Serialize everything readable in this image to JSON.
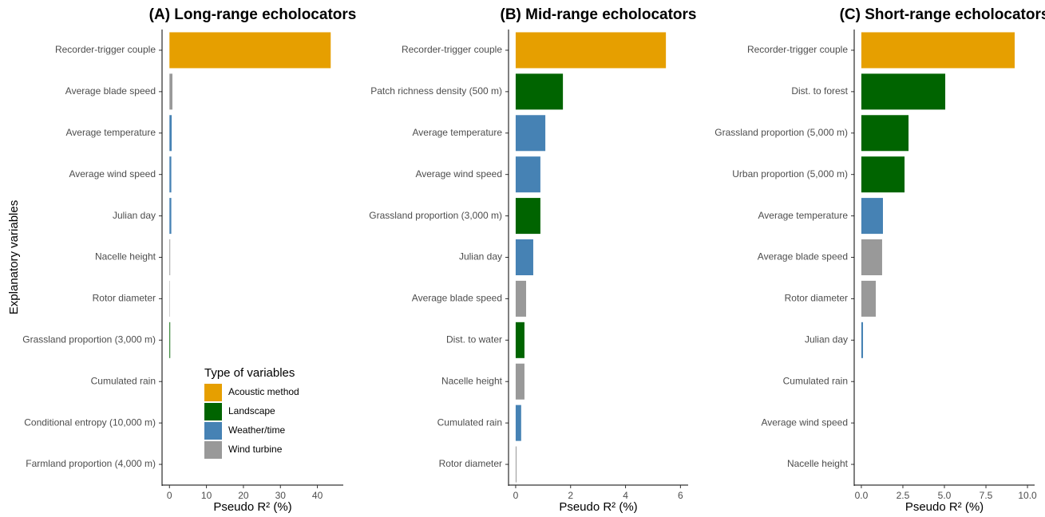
{
  "chart_data": [
    {
      "type": "bar",
      "orientation": "horizontal",
      "title": "(A) Long-range echolocators",
      "xlabel": "Pseudo R² (%)",
      "ylabel": "Explanatory variables",
      "categories": [
        "Recorder-trigger couple",
        "Average blade speed",
        "Average temperature",
        "Average wind speed",
        "Julian day",
        "Nacelle height",
        "Rotor diameter",
        "Grassland proportion (3,000 m)",
        "Cumulated rain",
        "Conditional entropy (10,000 m)",
        "Farmland proportion (4,000 m)"
      ],
      "values": [
        43.6,
        0.8,
        0.6,
        0.5,
        0.5,
        0.2,
        0.1,
        0.2,
        0,
        0,
        0
      ],
      "colors": [
        "#E69F00",
        "#999999",
        "#4682B4",
        "#4682B4",
        "#4682B4",
        "#999999",
        "#999999",
        "#006400",
        "#4682B4",
        "#006400",
        "#006400"
      ],
      "xlim": [
        -2,
        47
      ],
      "xticks": [
        0,
        10,
        20,
        30,
        40
      ],
      "legend": {
        "title": "Type of variables",
        "position": "bottom-right",
        "items": [
          {
            "name": "Acoustic method",
            "color": "#E69F00"
          },
          {
            "name": "Landscape",
            "color": "#006400"
          },
          {
            "name": "Weather/time",
            "color": "#4682B4"
          },
          {
            "name": "Wind turbine",
            "color": "#999999"
          }
        ]
      }
    },
    {
      "type": "bar",
      "orientation": "horizontal",
      "title": "(B) Mid-range echolocators",
      "xlabel": "Pseudo R² (%)",
      "categories": [
        "Recorder-trigger couple",
        "Patch richness density (500 m)",
        "Average temperature",
        "Average wind speed",
        "Grassland proportion (3,000 m)",
        "Julian day",
        "Average blade speed",
        "Dist. to water",
        "Nacelle height",
        "Cumulated rain",
        "Rotor diameter"
      ],
      "values": [
        5.47,
        1.72,
        1.08,
        0.9,
        0.9,
        0.64,
        0.38,
        0.32,
        0.32,
        0.2,
        0.03
      ],
      "colors": [
        "#E69F00",
        "#006400",
        "#4682B4",
        "#4682B4",
        "#006400",
        "#4682B4",
        "#999999",
        "#006400",
        "#999999",
        "#4682B4",
        "#999999"
      ],
      "xlim": [
        -0.26,
        6.28
      ],
      "xticks": [
        0,
        2,
        4,
        6
      ]
    },
    {
      "type": "bar",
      "orientation": "horizontal",
      "title": "(C) Short-range echolocators",
      "xlabel": "Pseudo R² (%)",
      "categories": [
        "Recorder-trigger couple",
        "Dist. to forest",
        "Grassland proportion (5,000 m)",
        "Urban proportion (5,000 m)",
        "Average temperature",
        "Average blade speed",
        "Rotor diameter",
        "Julian day",
        "Cumulated rain",
        "Average wind speed",
        "Nacelle height"
      ],
      "values": [
        9.23,
        5.05,
        2.84,
        2.6,
        1.3,
        1.25,
        0.87,
        0.1,
        0,
        0,
        0
      ],
      "colors": [
        "#E69F00",
        "#006400",
        "#006400",
        "#006400",
        "#4682B4",
        "#999999",
        "#999999",
        "#4682B4",
        "#4682B4",
        "#4682B4",
        "#999999"
      ],
      "xlim": [
        -0.43,
        10.43
      ],
      "xticks": [
        {
          "value": 0,
          "label": "0.0"
        },
        2.5,
        {
          "value": 5,
          "label": "5.0"
        },
        7.5,
        {
          "value": 10,
          "label": "10.0"
        }
      ]
    }
  ]
}
